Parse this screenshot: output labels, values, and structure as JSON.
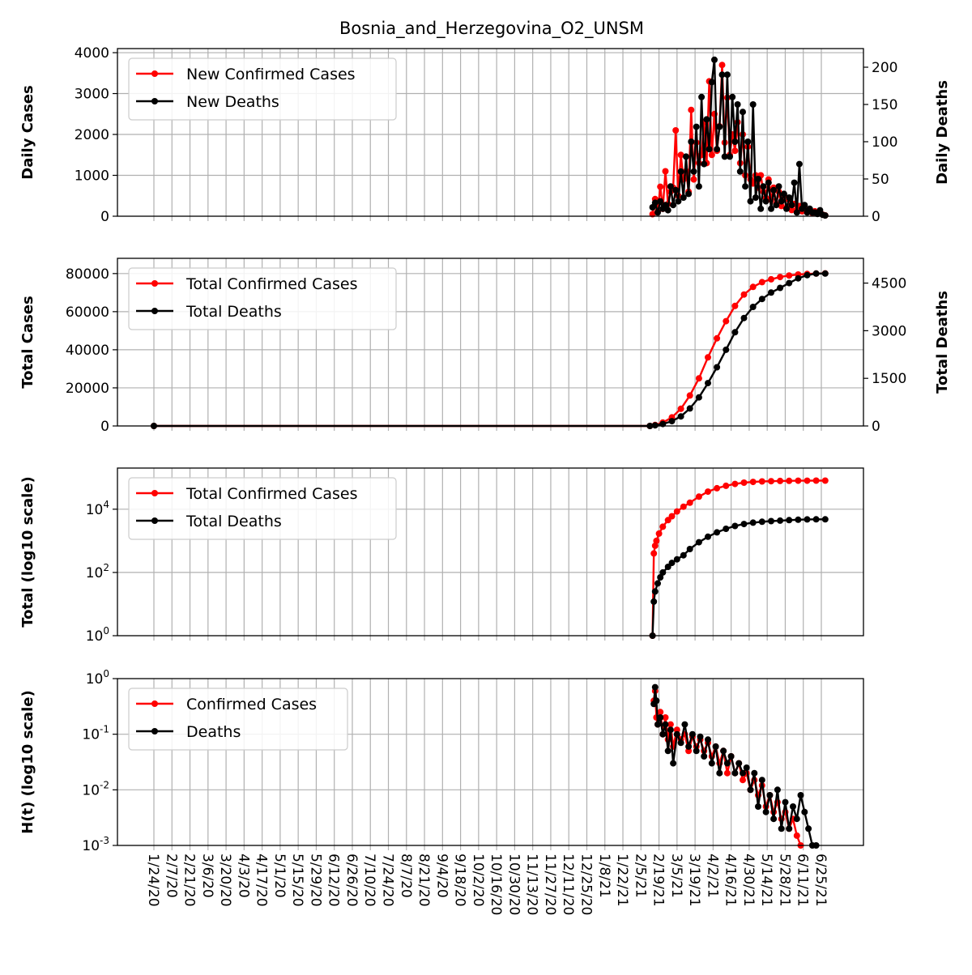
{
  "chart_data": {
    "type": "line",
    "title": "Bosnia_and_Herzegovina_O2_UNSM",
    "x_tick_labels": [
      "1/24/20",
      "2/7/20",
      "2/21/20",
      "3/6/20",
      "3/20/20",
      "4/3/20",
      "4/17/20",
      "5/1/20",
      "5/15/20",
      "5/29/20",
      "6/12/20",
      "6/26/20",
      "7/10/20",
      "7/24/20",
      "8/7/20",
      "8/21/20",
      "9/4/20",
      "9/18/20",
      "10/2/20",
      "10/16/20",
      "10/30/20",
      "11/13/20",
      "11/27/20",
      "12/11/20",
      "12/25/20",
      "1/8/21",
      "1/22/21",
      "2/5/21",
      "2/19/21",
      "3/5/21",
      "3/19/21",
      "4/2/21",
      "4/16/21",
      "4/30/21",
      "5/14/21",
      "5/28/21",
      "6/11/21",
      "6/25/21"
    ],
    "colors": {
      "cases": "#ff0000",
      "deaths": "#000000",
      "grid": "#b0b0b0"
    },
    "panels": [
      {
        "id": "daily",
        "ylabel": "Daily Cases",
        "ylabel_right": "Daily Deaths",
        "ylim": [
          0,
          4100
        ],
        "ylim_right": [
          0,
          225
        ],
        "yticks": [
          0,
          1000,
          2000,
          3000,
          4000
        ],
        "yticks_right": [
          0,
          50,
          100,
          150,
          200
        ],
        "legend": [
          "New Confirmed Cases",
          "New Deaths"
        ],
        "legend_placement": "upper-left",
        "series": [
          {
            "name": "New Confirmed Cases",
            "axis": "left",
            "color": "#ff0000",
            "x": [
              "2/14/21",
              "2/16/21",
              "2/18/21",
              "2/20/21",
              "2/22/21",
              "2/24/21",
              "2/26/21",
              "2/28/21",
              "3/2/21",
              "3/4/21",
              "3/6/21",
              "3/8/21",
              "3/10/21",
              "3/12/21",
              "3/14/21",
              "3/16/21",
              "3/18/21",
              "3/20/21",
              "3/22/21",
              "3/24/21",
              "3/26/21",
              "3/28/21",
              "3/30/21",
              "4/1/21",
              "4/3/21",
              "4/5/21",
              "4/7/21",
              "4/9/21",
              "4/11/21",
              "4/13/21",
              "4/15/21",
              "4/17/21",
              "4/19/21",
              "4/21/21",
              "4/23/21",
              "4/25/21",
              "4/27/21",
              "4/29/21",
              "5/1/21",
              "5/3/21",
              "5/5/21",
              "5/7/21",
              "5/9/21",
              "5/11/21",
              "5/13/21",
              "5/15/21",
              "5/17/21",
              "5/19/21",
              "5/21/21",
              "5/23/21",
              "5/25/21",
              "5/27/21",
              "5/29/21",
              "5/31/21",
              "6/2/21",
              "6/4/21",
              "6/6/21",
              "6/8/21",
              "6/10/21",
              "6/12/21",
              "6/14/21",
              "6/16/21",
              "6/18/21",
              "6/20/21",
              "6/22/21",
              "6/24/21",
              "6/26/21",
              "6/28/21"
            ],
            "values": [
              50,
              420,
              120,
              720,
              180,
              1100,
              300,
              600,
              700,
              2100,
              500,
              1500,
              900,
              1100,
              600,
              2600,
              900,
              1800,
              1300,
              1500,
              2300,
              1300,
              3300,
              1500,
              2500,
              1600,
              2200,
              3700,
              1800,
              2900,
              1500,
              2000,
              1600,
              2300,
              1300,
              2000,
              1000,
              1700,
              900,
              800,
              1000,
              700,
              1000,
              600,
              450,
              900,
              400,
              700,
              300,
              600,
              250,
              500,
              200,
              400,
              150,
              300,
              150,
              250,
              120,
              200,
              100,
              150,
              80,
              120,
              60,
              80,
              40,
              20
            ]
          },
          {
            "name": "New Deaths",
            "axis": "right",
            "color": "#000000",
            "x": [
              "2/14/21",
              "2/16/21",
              "2/18/21",
              "2/20/21",
              "2/22/21",
              "2/24/21",
              "2/26/21",
              "2/28/21",
              "3/2/21",
              "3/4/21",
              "3/6/21",
              "3/8/21",
              "3/10/21",
              "3/12/21",
              "3/14/21",
              "3/16/21",
              "3/18/21",
              "3/20/21",
              "3/22/21",
              "3/24/21",
              "3/26/21",
              "3/28/21",
              "3/30/21",
              "4/1/21",
              "4/3/21",
              "4/5/21",
              "4/7/21",
              "4/9/21",
              "4/11/21",
              "4/13/21",
              "4/15/21",
              "4/17/21",
              "4/19/21",
              "4/21/21",
              "4/23/21",
              "4/25/21",
              "4/27/21",
              "4/29/21",
              "5/1/21",
              "5/3/21",
              "5/5/21",
              "5/7/21",
              "5/9/21",
              "5/11/21",
              "5/13/21",
              "5/15/21",
              "5/17/21",
              "5/19/21",
              "5/21/21",
              "5/23/21",
              "5/25/21",
              "5/27/21",
              "5/29/21",
              "5/31/21",
              "6/2/21",
              "6/4/21",
              "6/6/21",
              "6/8/21",
              "6/10/21",
              "6/12/21",
              "6/14/21",
              "6/16/21",
              "6/18/21",
              "6/20/21",
              "6/22/21",
              "6/24/21",
              "6/26/21",
              "6/28/21"
            ],
            "values": [
              12,
              18,
              5,
              20,
              10,
              15,
              8,
              40,
              15,
              35,
              20,
              60,
              25,
              80,
              30,
              100,
              60,
              120,
              40,
              160,
              70,
              130,
              90,
              180,
              210,
              90,
              120,
              190,
              80,
              190,
              80,
              160,
              100,
              150,
              60,
              140,
              40,
              100,
              20,
              150,
              25,
              50,
              10,
              40,
              20,
              45,
              10,
              35,
              15,
              40,
              20,
              30,
              10,
              25,
              15,
              45,
              5,
              70,
              10,
              15,
              5,
              10,
              5,
              5,
              3,
              8,
              2,
              1
            ]
          }
        ]
      },
      {
        "id": "total",
        "ylabel": "Total Cases",
        "ylabel_right": "Total Deaths",
        "ylim": [
          0,
          88000
        ],
        "ylim_right": [
          0,
          5280
        ],
        "yticks": [
          0,
          20000,
          40000,
          60000,
          80000
        ],
        "yticks_right": [
          0,
          1500,
          3000,
          4500
        ],
        "legend": [
          "Total Confirmed Cases",
          "Total Deaths"
        ],
        "legend_placement": "upper-left",
        "series": [
          {
            "name": "Total Confirmed Cases",
            "axis": "left",
            "color": "#ff0000",
            "x": [
              "1/24/20",
              "2/12/21",
              "2/16/21",
              "2/22/21",
              "3/1/21",
              "3/8/21",
              "3/15/21",
              "3/22/21",
              "3/29/21",
              "4/5/21",
              "4/12/21",
              "4/19/21",
              "4/26/21",
              "5/3/21",
              "5/10/21",
              "5/17/21",
              "5/24/21",
              "5/31/21",
              "6/7/21",
              "6/14/21",
              "6/21/21",
              "6/28/21"
            ],
            "values": [
              0,
              0,
              500,
              1800,
              4500,
              9000,
              16000,
              25000,
              36000,
              46000,
              55000,
              63000,
              69000,
              73000,
              75500,
              77000,
              78200,
              79000,
              79500,
              79800,
              80000,
              80100
            ]
          },
          {
            "name": "Total Deaths",
            "axis": "right",
            "color": "#000000",
            "x": [
              "1/24/20",
              "2/12/21",
              "2/16/21",
              "2/22/21",
              "3/1/21",
              "3/8/21",
              "3/15/21",
              "3/22/21",
              "3/29/21",
              "4/5/21",
              "4/12/21",
              "4/19/21",
              "4/26/21",
              "5/3/21",
              "5/10/21",
              "5/17/21",
              "5/24/21",
              "5/31/21",
              "6/7/21",
              "6/14/21",
              "6/21/21",
              "6/28/21"
            ],
            "values": [
              0,
              0,
              20,
              60,
              150,
              300,
              550,
              900,
              1350,
              1850,
              2400,
              2950,
              3400,
              3750,
              4000,
              4200,
              4350,
              4500,
              4650,
              4750,
              4800,
              4800
            ]
          }
        ]
      },
      {
        "id": "log_total",
        "ylabel": "Total (log10 scale)",
        "yscale": "log",
        "ylim": [
          1,
          200000
        ],
        "yticks": [
          1,
          100,
          10000
        ],
        "legend": [
          "Total Confirmed Cases",
          "Total Deaths"
        ],
        "legend_placement": "upper-left",
        "series": [
          {
            "name": "Total Confirmed Cases",
            "color": "#ff0000",
            "x": [
              "2/14/21",
              "2/15/21",
              "2/16/21",
              "2/17/21",
              "2/19/21",
              "2/22/21",
              "2/26/21",
              "3/1/21",
              "3/5/21",
              "3/10/21",
              "3/15/21",
              "3/22/21",
              "3/29/21",
              "4/5/21",
              "4/12/21",
              "4/19/21",
              "4/26/21",
              "5/3/21",
              "5/10/21",
              "5/17/21",
              "5/24/21",
              "5/31/21",
              "6/7/21",
              "6/14/21",
              "6/21/21",
              "6/28/21"
            ],
            "values": [
              1,
              400,
              700,
              1000,
              1700,
              2800,
              4500,
              6000,
              8500,
              12000,
              16000,
              25000,
              36000,
              46000,
              55000,
              63000,
              69000,
              73000,
              75500,
              77000,
              78200,
              79000,
              79500,
              79800,
              80000,
              80100
            ]
          },
          {
            "name": "Total Deaths",
            "color": "#000000",
            "x": [
              "2/14/21",
              "2/15/21",
              "2/16/21",
              "2/18/21",
              "2/20/21",
              "2/22/21",
              "2/26/21",
              "3/1/21",
              "3/5/21",
              "3/10/21",
              "3/15/21",
              "3/22/21",
              "3/29/21",
              "4/5/21",
              "4/12/21",
              "4/19/21",
              "4/26/21",
              "5/3/21",
              "5/10/21",
              "5/17/21",
              "5/24/21",
              "5/31/21",
              "6/7/21",
              "6/14/21",
              "6/21/21",
              "6/28/21"
            ],
            "values": [
              1,
              12,
              25,
              45,
              70,
              100,
              150,
              200,
              260,
              350,
              550,
              900,
              1350,
              1850,
              2400,
              2950,
              3400,
              3750,
              4000,
              4200,
              4350,
              4500,
              4650,
              4750,
              4800,
              4800
            ]
          }
        ]
      },
      {
        "id": "hazard",
        "ylabel": "H(t) (log10 scale)",
        "yscale": "log",
        "ylim": [
          0.001,
          1
        ],
        "yticks": [
          0.001,
          0.01,
          0.1,
          1
        ],
        "legend": [
          "Confirmed Cases",
          "Deaths"
        ],
        "legend_placement": "upper-left",
        "series": [
          {
            "name": "Confirmed Cases",
            "color": "#ff0000",
            "x": [
              "2/15/21",
              "2/16/21",
              "2/17/21",
              "2/18/21",
              "2/20/21",
              "2/22/21",
              "2/24/21",
              "2/26/21",
              "2/28/21",
              "3/2/21",
              "3/5/21",
              "3/8/21",
              "3/11/21",
              "3/14/21",
              "3/17/21",
              "3/20/21",
              "3/23/21",
              "3/26/21",
              "3/29/21",
              "4/1/21",
              "4/4/21",
              "4/7/21",
              "4/10/21",
              "4/13/21",
              "4/16/21",
              "4/19/21",
              "4/22/21",
              "4/25/21",
              "4/28/21",
              "5/1/21",
              "5/4/21",
              "5/7/21",
              "5/10/21",
              "5/13/21",
              "5/16/21",
              "5/19/21",
              "5/22/21",
              "5/25/21",
              "5/28/21",
              "5/31/21",
              "6/3/21",
              "6/6/21",
              "6/9/21"
            ],
            "values": [
              0.4,
              0.6,
              0.2,
              0.15,
              0.25,
              0.1,
              0.2,
              0.08,
              0.15,
              0.06,
              0.12,
              0.08,
              0.1,
              0.05,
              0.09,
              0.06,
              0.08,
              0.05,
              0.07,
              0.04,
              0.06,
              0.03,
              0.05,
              0.02,
              0.04,
              0.02,
              0.03,
              0.015,
              0.02,
              0.01,
              0.015,
              0.008,
              0.012,
              0.005,
              0.008,
              0.004,
              0.006,
              0.003,
              0.004,
              0.002,
              0.003,
              0.0015,
              0.001
            ]
          },
          {
            "name": "Deaths",
            "color": "#000000",
            "x": [
              "2/15/21",
              "2/16/21",
              "2/17/21",
              "2/18/21",
              "2/20/21",
              "2/22/21",
              "2/24/21",
              "2/26/21",
              "2/28/21",
              "3/2/21",
              "3/5/21",
              "3/8/21",
              "3/11/21",
              "3/14/21",
              "3/17/21",
              "3/20/21",
              "3/23/21",
              "3/26/21",
              "3/29/21",
              "4/1/21",
              "4/4/21",
              "4/7/21",
              "4/10/21",
              "4/13/21",
              "4/16/21",
              "4/19/21",
              "4/22/21",
              "4/25/21",
              "4/28/21",
              "5/1/21",
              "5/4/21",
              "5/7/21",
              "5/10/21",
              "5/13/21",
              "5/16/21",
              "5/19/21",
              "5/22/21",
              "5/25/21",
              "5/28/21",
              "5/31/21",
              "6/3/21",
              "6/6/21",
              "6/9/21",
              "6/12/21",
              "6/15/21",
              "6/18/21",
              "6/21/21"
            ],
            "values": [
              0.35,
              0.7,
              0.4,
              0.15,
              0.2,
              0.1,
              0.15,
              0.05,
              0.12,
              0.03,
              0.1,
              0.07,
              0.15,
              0.06,
              0.1,
              0.05,
              0.09,
              0.04,
              0.08,
              0.03,
              0.06,
              0.02,
              0.05,
              0.03,
              0.04,
              0.02,
              0.03,
              0.02,
              0.025,
              0.01,
              0.02,
              0.005,
              0.015,
              0.004,
              0.008,
              0.003,
              0.01,
              0.002,
              0.006,
              0.002,
              0.005,
              0.003,
              0.008,
              0.004,
              0.002,
              0.001,
              0.001
            ]
          }
        ]
      }
    ]
  }
}
